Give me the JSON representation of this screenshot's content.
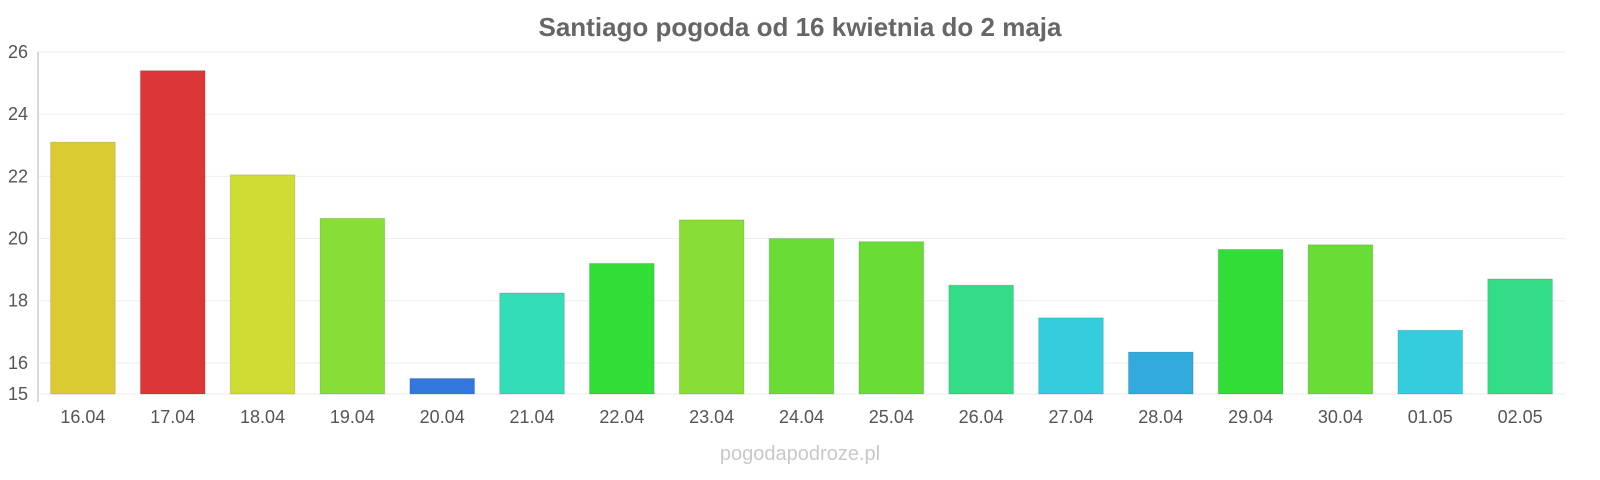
{
  "chart_data": {
    "type": "bar",
    "title": "Santiago pogoda od 16 kwietnia do 2 maja",
    "xlabel": "",
    "ylabel": "",
    "categories": [
      "16.04",
      "17.04",
      "18.04",
      "19.04",
      "20.04",
      "21.04",
      "22.04",
      "23.04",
      "24.04",
      "25.04",
      "26.04",
      "27.04",
      "28.04",
      "29.04",
      "30.04",
      "01.05",
      "02.05"
    ],
    "values": [
      23.1,
      25.4,
      22.05,
      20.65,
      15.5,
      18.25,
      19.2,
      20.6,
      20.0,
      19.9,
      18.5,
      17.45,
      16.35,
      19.65,
      19.8,
      17.05,
      18.7
    ],
    "colors": [
      "#dbcb32",
      "#dd3636",
      "#cfdd32",
      "#88dd36",
      "#3377dd",
      "#33ddb8",
      "#33dd38",
      "#88dd36",
      "#69dd36",
      "#69dd36",
      "#33dd88",
      "#33cddd",
      "#33aadd",
      "#33dd38",
      "#69dd36",
      "#33cddd",
      "#33dd88"
    ],
    "ylim": [
      15,
      26
    ],
    "yticks": [
      15,
      16,
      18,
      20,
      22,
      24,
      26
    ],
    "grid": true,
    "legend": "none"
  },
  "watermark": "pogodapodroze.pl"
}
